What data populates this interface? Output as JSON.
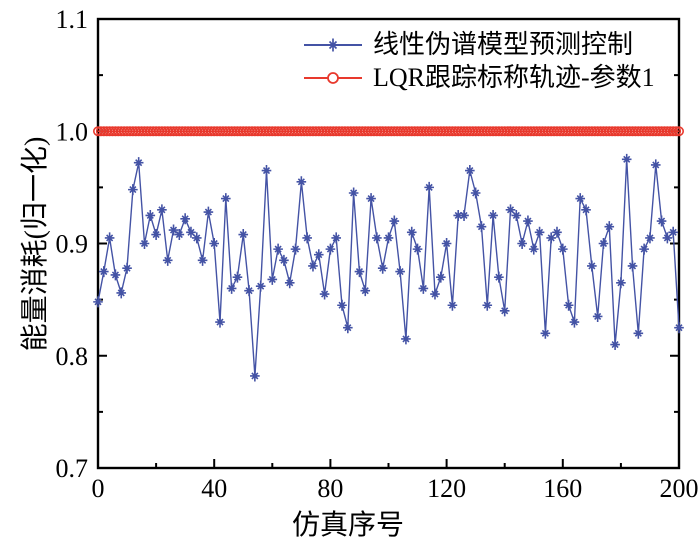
{
  "figure": {
    "background": "#ffffff",
    "axis_color": "#000000",
    "tick_label_color": "#000000"
  },
  "chart_data": {
    "type": "line",
    "title": "",
    "xlabel": "仿真序号",
    "ylabel": "能量消耗(归一化)",
    "xlim": [
      0,
      200
    ],
    "ylim": [
      0.7,
      1.1
    ],
    "grid": false,
    "legend_position": "inside-top-center",
    "x_major_ticks": [
      0,
      40,
      80,
      120,
      160,
      200
    ],
    "x_major_tick_labels": [
      "0",
      "40",
      "80",
      "120",
      "160",
      "200"
    ],
    "x_minor_ticks": [
      20,
      60,
      100,
      140,
      180
    ],
    "y_major_ticks": [
      0.7,
      0.8,
      0.9,
      1.0,
      1.1
    ],
    "y_major_tick_labels": [
      "0.7",
      "0.8",
      "0.9",
      "1.0",
      "1.1"
    ],
    "y_minor_ticks": [
      0.75,
      0.85,
      0.95,
      1.05
    ],
    "series": [
      {
        "name": "线性伪谱模型预测控制",
        "color": "#4453a5",
        "marker": "asterisk",
        "line": true,
        "x": [
          0,
          2,
          4,
          6,
          8,
          10,
          12,
          14,
          16,
          18,
          20,
          22,
          24,
          26,
          28,
          30,
          32,
          34,
          36,
          38,
          40,
          42,
          44,
          46,
          48,
          50,
          52,
          54,
          56,
          58,
          60,
          62,
          64,
          66,
          68,
          70,
          72,
          74,
          76,
          78,
          80,
          82,
          84,
          86,
          88,
          90,
          92,
          94,
          96,
          98,
          100,
          102,
          104,
          106,
          108,
          110,
          112,
          114,
          116,
          118,
          120,
          122,
          124,
          126,
          128,
          130,
          132,
          134,
          136,
          138,
          140,
          142,
          144,
          146,
          148,
          150,
          152,
          154,
          156,
          158,
          160,
          162,
          164,
          166,
          168,
          170,
          172,
          174,
          176,
          178,
          180,
          182,
          184,
          186,
          188,
          190,
          192,
          194,
          196,
          198,
          200
        ],
        "values": [
          0.848,
          0.875,
          0.905,
          0.872,
          0.856,
          0.878,
          0.948,
          0.972,
          0.9,
          0.925,
          0.908,
          0.93,
          0.885,
          0.912,
          0.908,
          0.922,
          0.91,
          0.905,
          0.885,
          0.928,
          0.9,
          0.83,
          0.94,
          0.86,
          0.87,
          0.908,
          0.858,
          0.782,
          0.862,
          0.965,
          0.868,
          0.895,
          0.885,
          0.865,
          0.895,
          0.955,
          0.905,
          0.88,
          0.89,
          0.855,
          0.895,
          0.905,
          0.845,
          0.825,
          0.945,
          0.875,
          0.858,
          0.94,
          0.905,
          0.878,
          0.905,
          0.92,
          0.875,
          0.815,
          0.91,
          0.895,
          0.86,
          0.95,
          0.855,
          0.87,
          0.9,
          0.845,
          0.925,
          0.925,
          0.965,
          0.945,
          0.915,
          0.845,
          0.925,
          0.87,
          0.84,
          0.93,
          0.925,
          0.9,
          0.92,
          0.895,
          0.91,
          0.82,
          0.905,
          0.91,
          0.895,
          0.845,
          0.83,
          0.94,
          0.93,
          0.88,
          0.835,
          0.9,
          0.915,
          0.81,
          0.865,
          0.975,
          0.88,
          0.82,
          0.895,
          0.905,
          0.97,
          0.92,
          0.905,
          0.91,
          0.825
        ]
      },
      {
        "name": "LQR跟踪标称轨迹-参数1",
        "color": "#e8392d",
        "marker": "circle",
        "line": true,
        "constant_value": 1.0,
        "x_start": 0,
        "x_end": 200,
        "marker_step": 1
      }
    ]
  }
}
